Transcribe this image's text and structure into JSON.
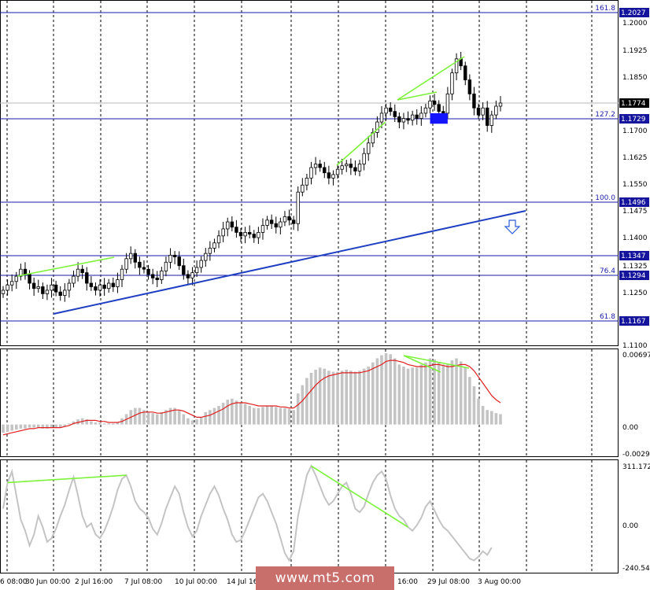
{
  "chart_data": [
    {
      "type": "candlestick",
      "title": "",
      "price_axis_labels": [
        "1.2000",
        "1.1925",
        "1.1850",
        "1.1700",
        "1.1625",
        "1.1550",
        "1.1475",
        "1.1400",
        "1.1325",
        "1.1250",
        "1.1100"
      ],
      "ylim": [
        1.1085,
        1.205
      ],
      "time_axis_labels": [
        "6 08:00",
        "30 Jun 00:00",
        "2 Jul 16:00",
        "7 Jul 08:00",
        "10 Jul 00:00",
        "14 Jul 16",
        "16:00",
        "29 Jul 08:00",
        "3 Aug 00:00"
      ],
      "current_price": "1.1774",
      "fibonacci_levels": [
        {
          "label": "161.8",
          "price": "1.2027",
          "value": 1.2027
        },
        {
          "label": "127.2",
          "price": "1.1729",
          "value": 1.1729
        },
        {
          "label": "100.0",
          "price": "1.1496",
          "value": 1.1496
        },
        {
          "label": "",
          "price": "1.1347",
          "value": 1.1347
        },
        {
          "label": "76.4",
          "price": "1.1294",
          "value": 1.1294
        },
        {
          "label": "61.8",
          "price": "1.1167",
          "value": 1.1167
        }
      ],
      "trend_line": {
        "from": 1.119,
        "to": 1.147
      },
      "series_close": [
        1.124,
        1.1255,
        1.1265,
        1.128,
        1.13,
        1.1285,
        1.126,
        1.1245,
        1.125,
        1.123,
        1.124,
        1.1255,
        1.1235,
        1.1225,
        1.124,
        1.126,
        1.128,
        1.13,
        1.129,
        1.126,
        1.125,
        1.124,
        1.1255,
        1.1245,
        1.126,
        1.125,
        1.127,
        1.13,
        1.133,
        1.1345,
        1.132,
        1.1305,
        1.13,
        1.1285,
        1.1275,
        1.127,
        1.1295,
        1.132,
        1.134,
        1.1335,
        1.131,
        1.1285,
        1.1275,
        1.129,
        1.1305,
        1.1325,
        1.1345,
        1.136,
        1.1375,
        1.1395,
        1.1415,
        1.1435,
        1.142,
        1.1405,
        1.1395,
        1.1405,
        1.14,
        1.139,
        1.1405,
        1.1425,
        1.144,
        1.143,
        1.142,
        1.1435,
        1.145,
        1.144,
        1.143,
        1.152,
        1.154,
        1.156,
        1.159,
        1.16,
        1.159,
        1.1575,
        1.156,
        1.157,
        1.1585,
        1.1595,
        1.16,
        1.159,
        1.158,
        1.16,
        1.163,
        1.166,
        1.169,
        1.172,
        1.1745,
        1.176,
        1.175,
        1.1735,
        1.172,
        1.173,
        1.1725,
        1.174,
        1.173,
        1.1745,
        1.176,
        1.178,
        1.177,
        1.175,
        1.1745,
        1.18,
        1.186,
        1.19,
        1.188,
        1.184,
        1.18,
        1.176,
        1.174,
        1.176,
        1.171,
        1.174,
        1.1765,
        1.1774
      ],
      "rect_zone": {
        "from_index": 97,
        "to_index": 101,
        "top": 1.1745,
        "bottom": 1.1715
      }
    },
    {
      "type": "bar+line",
      "indicator": "MACD",
      "axis_labels": [
        "0.00697",
        "0.00",
        "-0.00292"
      ],
      "ylim": [
        -0.00292,
        0.00697
      ],
      "histogram": [
        -0.0008,
        -0.0007,
        -0.0006,
        -0.0005,
        -0.0004,
        -0.0004,
        -0.0003,
        -0.0003,
        -0.0003,
        -0.0004,
        -0.0004,
        -0.0003,
        -0.0003,
        -0.0003,
        -0.0002,
        0.0001,
        0.0003,
        0.0005,
        0.0006,
        0.0005,
        0.0003,
        0.0002,
        0.0002,
        0.0001,
        0.0001,
        0.0001,
        0.0002,
        0.0006,
        0.001,
        0.0014,
        0.0016,
        0.0016,
        0.0014,
        0.0012,
        0.0011,
        0.001,
        0.0012,
        0.0014,
        0.0016,
        0.0016,
        0.0014,
        0.001,
        0.0006,
        0.0004,
        0.0005,
        0.0007,
        0.0012,
        0.0014,
        0.0016,
        0.0018,
        0.0021,
        0.0024,
        0.0025,
        0.0023,
        0.0021,
        0.002,
        0.0018,
        0.0016,
        0.0016,
        0.0017,
        0.0018,
        0.0018,
        0.0017,
        0.0016,
        0.0016,
        0.0015,
        0.0014,
        0.003,
        0.0038,
        0.0045,
        0.005,
        0.0053,
        0.0055,
        0.0054,
        0.0052,
        0.0051,
        0.0051,
        0.0052,
        0.0053,
        0.0052,
        0.0051,
        0.0052,
        0.0054,
        0.0056,
        0.006,
        0.0064,
        0.0067,
        0.0069,
        0.0068,
        0.0064,
        0.0058,
        0.0056,
        0.0054,
        0.0055,
        0.0055,
        0.0058,
        0.006,
        0.0064,
        0.0063,
        0.006,
        0.0058,
        0.0058,
        0.0062,
        0.0064,
        0.0061,
        0.0055,
        0.0046,
        0.0037,
        0.0025,
        0.0018,
        0.0014,
        0.0013,
        0.0011,
        0.001
      ],
      "signal": [
        -0.001,
        -0.0009,
        -0.0008,
        -0.0007,
        -0.0006,
        -0.0005,
        -0.0004,
        -0.0004,
        -0.0003,
        -0.0003,
        -0.0003,
        -0.0003,
        -0.0003,
        -0.0003,
        -0.0002,
        -0.0001,
        0.0001,
        0.0002,
        0.0003,
        0.0004,
        0.0004,
        0.0004,
        0.0003,
        0.0003,
        0.0002,
        0.0002,
        0.0002,
        0.0003,
        0.0005,
        0.0007,
        0.0009,
        0.0011,
        0.0012,
        0.0012,
        0.0012,
        0.0011,
        0.0011,
        0.0012,
        0.0013,
        0.0014,
        0.0014,
        0.0013,
        0.0011,
        0.0009,
        0.0007,
        0.0007,
        0.0008,
        0.0009,
        0.0011,
        0.0013,
        0.0015,
        0.0018,
        0.002,
        0.0021,
        0.0021,
        0.0021,
        0.002,
        0.0019,
        0.0018,
        0.0018,
        0.0018,
        0.0018,
        0.0018,
        0.0017,
        0.0017,
        0.0016,
        0.0016,
        0.0019,
        0.0023,
        0.0028,
        0.0033,
        0.0038,
        0.0042,
        0.0045,
        0.0047,
        0.0048,
        0.0049,
        0.005,
        0.005,
        0.005,
        0.005,
        0.005,
        0.0051,
        0.0052,
        0.0054,
        0.0056,
        0.0058,
        0.0061,
        0.0062,
        0.0062,
        0.0061,
        0.006,
        0.0058,
        0.0057,
        0.0056,
        0.0056,
        0.0056,
        0.0057,
        0.0058,
        0.0058,
        0.0057,
        0.0056,
        0.0056,
        0.0057,
        0.0058,
        0.0058,
        0.0056,
        0.0052,
        0.0046,
        0.004,
        0.0034,
        0.0028,
        0.0024,
        0.0021
      ]
    },
    {
      "type": "line",
      "indicator": "CCI",
      "axis_labels": [
        "311.1728",
        "0.00",
        "-240.5486"
      ],
      "ylim": [
        -240.5486,
        311.1728
      ],
      "values": [
        80,
        220,
        280,
        150,
        20,
        -40,
        -120,
        -60,
        40,
        -20,
        -100,
        -80,
        -30,
        40,
        100,
        180,
        250,
        150,
        40,
        -20,
        0,
        -60,
        -80,
        -40,
        20,
        90,
        180,
        240,
        260,
        200,
        120,
        80,
        60,
        30,
        -30,
        -60,
        0,
        80,
        140,
        200,
        160,
        60,
        -20,
        -70,
        -40,
        40,
        100,
        160,
        200,
        150,
        80,
        20,
        -60,
        -100,
        -90,
        -40,
        20,
        80,
        140,
        160,
        120,
        60,
        0,
        -80,
        -160,
        -200,
        -150,
        40,
        150,
        260,
        310,
        260,
        200,
        140,
        100,
        120,
        160,
        200,
        220,
        160,
        80,
        60,
        90,
        160,
        220,
        260,
        280,
        240,
        150,
        80,
        40,
        20,
        -20,
        -40,
        -10,
        30,
        90,
        120,
        70,
        20,
        -20,
        -40,
        -70,
        -100,
        -130,
        -160,
        -190,
        -200,
        -180,
        -150,
        -170,
        -130
      ],
      "divergence_lines": [
        [
          1,
          28
        ],
        [
          70,
          92
        ]
      ]
    }
  ],
  "watermark": {
    "text": "www.mt5.com"
  },
  "arrow": {
    "direction": "down"
  },
  "colors": {
    "bull_candle": "#ffffff",
    "bear_candle": "#000000",
    "fib_line": "#1a1aa8",
    "trend_line": "#1f3fc2",
    "green_lines": "#7cf23a",
    "histogram": "#c4c4c4",
    "signal": "#e01e1e",
    "cci": "#c4c4c4",
    "current_price_box": "#000000",
    "fib_box": "#14149c",
    "zone": "#1414ff",
    "watermark_bg": "#c96f6b"
  }
}
